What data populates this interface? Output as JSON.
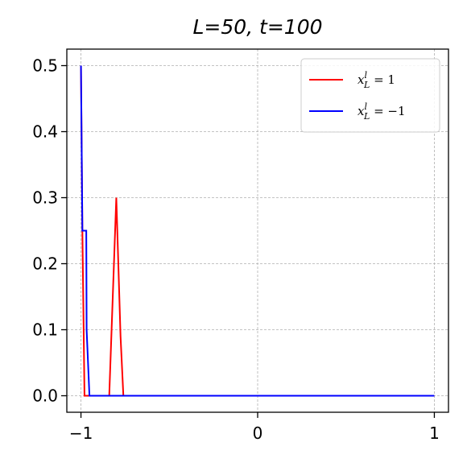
{
  "chart_data": {
    "type": "line",
    "title": "L=50, t=100",
    "xlabel": "",
    "ylabel": "",
    "xlim": [
      -1.08,
      1.08
    ],
    "ylim": [
      -0.025,
      0.525
    ],
    "xticks": [
      -1,
      0,
      1
    ],
    "xtick_labels": [
      "−1",
      "0",
      "1"
    ],
    "yticks": [
      0.0,
      0.1,
      0.2,
      0.3,
      0.4,
      0.5
    ],
    "ytick_labels": [
      "0.0",
      "0.1",
      "0.2",
      "0.3",
      "0.4",
      "0.5"
    ],
    "grid": true,
    "legend_position": "top-right",
    "series": [
      {
        "name": "x_L^l = 1",
        "legend_main": "x",
        "legend_sup": "l",
        "legend_sub": "L",
        "legend_rhs": " = 1",
        "color": "#ff0000",
        "x": [
          -1.0,
          -0.992,
          -0.98,
          -0.96,
          -0.84,
          -0.8,
          -0.776,
          -0.76,
          1.0
        ],
        "y": [
          0.5,
          0.25,
          0.0,
          0.0,
          0.0,
          0.3,
          0.09,
          0.0,
          0.0
        ]
      },
      {
        "name": "x_L^l = −1",
        "legend_main": "x",
        "legend_sup": "l",
        "legend_sub": "L",
        "legend_rhs": " = −1",
        "color": "#0000ff",
        "x": [
          -1.0,
          -0.992,
          -0.97,
          -0.968,
          -0.952,
          -0.94,
          1.0
        ],
        "y": [
          0.5,
          0.25,
          0.25,
          0.1,
          0.0,
          0.0,
          0.0
        ]
      }
    ]
  }
}
